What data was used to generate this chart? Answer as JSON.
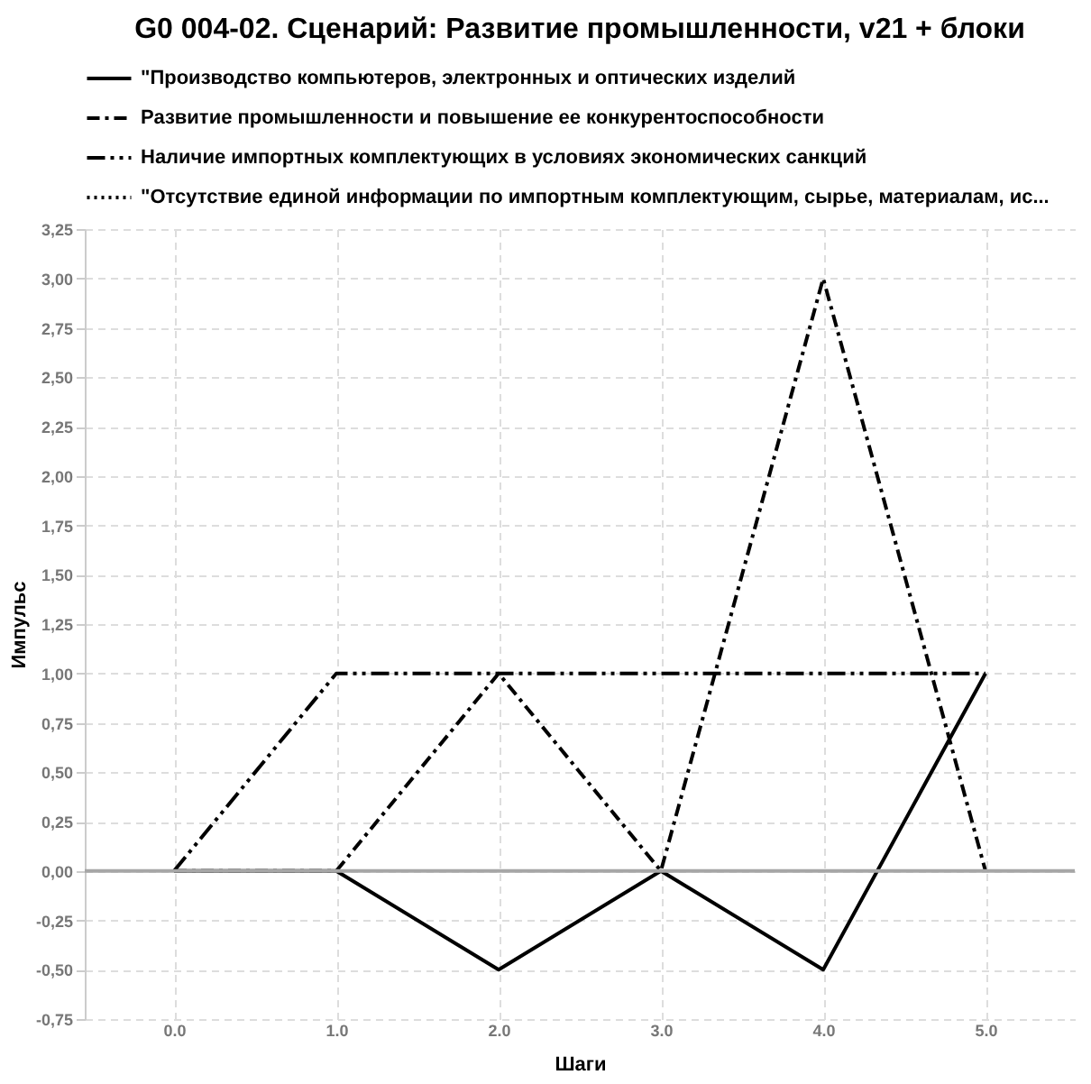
{
  "chart_data": {
    "type": "line",
    "title": "G0 004-02. Сценарий: Развитие промышленности,  v21 + блоки",
    "xlabel": "Шаги",
    "ylabel": "Импульс",
    "x": [
      0,
      1,
      2,
      3,
      4,
      5
    ],
    "series": [
      {
        "name": "\"Производство компьютеров, электронных и оптических изделий",
        "color": "#000000",
        "line_style": "solid",
        "values": [
          0,
          0,
          -0.5,
          0,
          -0.5,
          1
        ]
      },
      {
        "name": "Развитие промышленности и повышение ее конкурентоспособности",
        "color": "#000000",
        "line_style": "dashdot",
        "values": [
          0,
          0,
          1,
          0,
          3,
          0
        ]
      },
      {
        "name": "Наличие импортных комплектующих в условиях экономических санкций",
        "color": "#000000",
        "line_style": "dashdotdot",
        "values": [
          0,
          1,
          1,
          1,
          1,
          1
        ]
      },
      {
        "name": "\"Отсутствие единой информации по импортным комплектующим, сырье, материалам, ис...",
        "color": "#000000",
        "line_style": "dotted",
        "values": [
          null,
          null,
          null,
          null,
          null,
          null
        ]
      }
    ],
    "xlim": [
      -0.55,
      5.55
    ],
    "xticks": [
      {
        "value": 0,
        "label": "0.0"
      },
      {
        "value": 1,
        "label": "1.0"
      },
      {
        "value": 2,
        "label": "2.0"
      },
      {
        "value": 3,
        "label": "3.0"
      },
      {
        "value": 4,
        "label": "4.0"
      },
      {
        "value": 5,
        "label": "5.0"
      }
    ],
    "ylim": [
      -0.75,
      3.25
    ],
    "yticks": [
      {
        "value": -0.75,
        "label": "-0,75"
      },
      {
        "value": -0.5,
        "label": "-0,50"
      },
      {
        "value": -0.25,
        "label": "-0,25"
      },
      {
        "value": 0,
        "label": "0,00"
      },
      {
        "value": 0.25,
        "label": "0,25"
      },
      {
        "value": 0.5,
        "label": "0,50"
      },
      {
        "value": 0.75,
        "label": "0,75"
      },
      {
        "value": 1,
        "label": "1,00"
      },
      {
        "value": 1.25,
        "label": "1,25"
      },
      {
        "value": 1.5,
        "label": "1,50"
      },
      {
        "value": 1.75,
        "label": "1,75"
      },
      {
        "value": 2,
        "label": "2,00"
      },
      {
        "value": 2.25,
        "label": "2,25"
      },
      {
        "value": 2.5,
        "label": "2,50"
      },
      {
        "value": 2.75,
        "label": "2,75"
      },
      {
        "value": 3,
        "label": "3,00"
      },
      {
        "value": 3.25,
        "label": "3,25"
      }
    ],
    "ref_lines": [
      {
        "axis": "y",
        "value": 0,
        "color": "#a6a6a6"
      }
    ],
    "grid": true,
    "legend": "top"
  }
}
